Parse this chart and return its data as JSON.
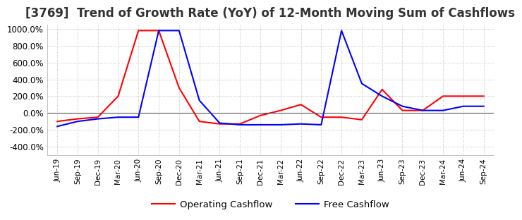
{
  "title": "[3769]  Trend of Growth Rate (YoY) of 12-Month Moving Sum of Cashflows",
  "title_fontsize": 12,
  "ylim": [
    -500,
    1050
  ],
  "yticks": [
    -400,
    -200,
    0,
    200,
    400,
    600,
    800,
    1000
  ],
  "ytick_labels": [
    "-400.0%",
    "-200.0%",
    "0.0%",
    "200.0%",
    "400.0%",
    "600.0%",
    "800.0%",
    "1000.0%"
  ],
  "background_color": "#ffffff",
  "grid_color": "#b0b0b0",
  "grid_style": "dotted",
  "legend_labels": [
    "Operating Cashflow",
    "Free Cashflow"
  ],
  "legend_colors": [
    "#ff0000",
    "#0000ff"
  ],
  "x_labels": [
    "Jun-19",
    "Sep-19",
    "Dec-19",
    "Mar-20",
    "Jun-20",
    "Sep-20",
    "Dec-20",
    "Mar-21",
    "Jun-21",
    "Sep-21",
    "Dec-21",
    "Mar-22",
    "Jun-22",
    "Sep-22",
    "Dec-22",
    "Mar-23",
    "Jun-23",
    "Sep-23",
    "Dec-23",
    "Mar-24",
    "Jun-24",
    "Sep-24"
  ],
  "operating_cashflow": [
    -100,
    -70,
    -50,
    200,
    980,
    980,
    300,
    -100,
    -130,
    -130,
    -30,
    30,
    100,
    -50,
    -50,
    -80,
    280,
    30,
    30,
    200,
    200,
    200
  ],
  "free_cashflow": [
    -160,
    -100,
    -70,
    -50,
    -50,
    980,
    980,
    150,
    -120,
    -140,
    -140,
    -140,
    -130,
    -140,
    980,
    350,
    200,
    80,
    30,
    30,
    80,
    80
  ]
}
